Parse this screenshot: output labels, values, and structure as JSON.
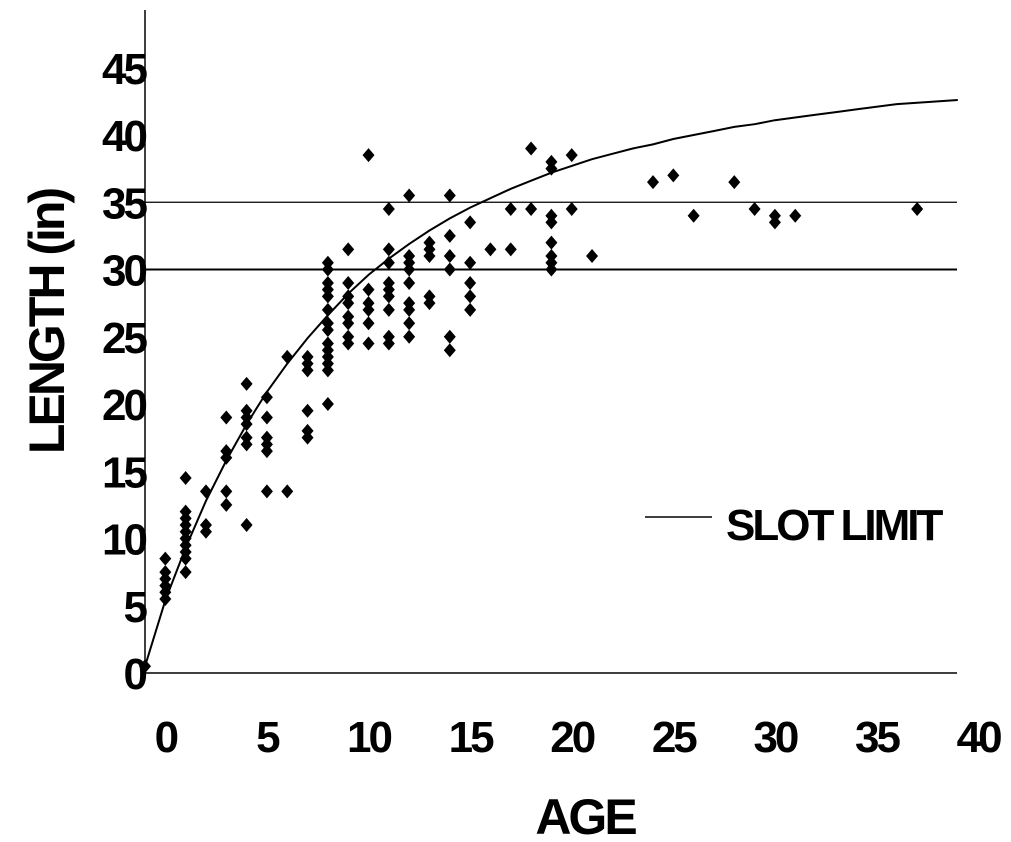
{
  "chart_data": {
    "type": "scatter",
    "xlabel": "AGE",
    "ylabel": "LENGTH (in)",
    "xlim": [
      -1,
      39
    ],
    "ylim": [
      0,
      45
    ],
    "x_ticks": [
      0,
      5,
      10,
      15,
      20,
      25,
      30,
      35,
      40
    ],
    "y_ticks": [
      0,
      5,
      10,
      15,
      20,
      25,
      30,
      35,
      40,
      45
    ],
    "grid": false,
    "legend": {
      "position": "right",
      "entries": [
        "SLOT LIMIT"
      ]
    },
    "slot_limits": [
      30,
      35
    ],
    "series": [
      {
        "kind": "points",
        "marker": "diamond",
        "color": "#000000",
        "points": [
          [
            -1,
            0.5
          ],
          [
            0,
            5.5
          ],
          [
            0,
            6
          ],
          [
            0,
            6.5
          ],
          [
            0,
            7
          ],
          [
            0,
            7.5
          ],
          [
            0,
            8.5
          ],
          [
            1,
            7.5
          ],
          [
            1,
            8.5
          ],
          [
            1,
            9
          ],
          [
            1,
            9.5
          ],
          [
            1,
            10
          ],
          [
            1,
            10.5
          ],
          [
            1,
            11
          ],
          [
            1,
            11.5
          ],
          [
            1,
            12
          ],
          [
            1,
            14.5
          ],
          [
            2,
            10.5
          ],
          [
            2,
            11
          ],
          [
            2,
            13.5
          ],
          [
            3,
            12.5
          ],
          [
            3,
            13.5
          ],
          [
            3,
            16
          ],
          [
            3,
            16.5
          ],
          [
            3,
            19
          ],
          [
            4,
            11
          ],
          [
            4,
            17
          ],
          [
            4,
            17.5
          ],
          [
            4,
            18.5
          ],
          [
            4,
            19
          ],
          [
            4,
            19.5
          ],
          [
            4,
            21.5
          ],
          [
            5,
            13.5
          ],
          [
            5,
            16.5
          ],
          [
            5,
            17
          ],
          [
            5,
            17.5
          ],
          [
            5,
            19
          ],
          [
            5,
            20.5
          ],
          [
            6,
            13.5
          ],
          [
            6,
            23.5
          ],
          [
            7,
            17.5
          ],
          [
            7,
            18
          ],
          [
            7,
            19.5
          ],
          [
            7,
            22.5
          ],
          [
            7,
            23
          ],
          [
            7,
            23.5
          ],
          [
            8,
            20
          ],
          [
            8,
            22.5
          ],
          [
            8,
            23
          ],
          [
            8,
            23.5
          ],
          [
            8,
            24
          ],
          [
            8,
            24.5
          ],
          [
            8,
            25.5
          ],
          [
            8,
            26
          ],
          [
            8,
            27
          ],
          [
            8,
            28
          ],
          [
            8,
            28.5
          ],
          [
            8,
            29
          ],
          [
            8,
            30
          ],
          [
            8,
            30.5
          ],
          [
            9,
            24.5
          ],
          [
            9,
            25
          ],
          [
            9,
            26
          ],
          [
            9,
            26.5
          ],
          [
            9,
            27.5
          ],
          [
            9,
            28
          ],
          [
            9,
            29
          ],
          [
            9,
            31.5
          ],
          [
            10,
            24.5
          ],
          [
            10,
            26
          ],
          [
            10,
            27
          ],
          [
            10,
            27.5
          ],
          [
            10,
            28.5
          ],
          [
            10,
            38.5
          ],
          [
            11,
            24.5
          ],
          [
            11,
            25
          ],
          [
            11,
            27
          ],
          [
            11,
            28
          ],
          [
            11,
            28.5
          ],
          [
            11,
            29
          ],
          [
            11,
            30.5
          ],
          [
            11,
            31.5
          ],
          [
            11,
            34.5
          ],
          [
            12,
            25
          ],
          [
            12,
            26
          ],
          [
            12,
            27
          ],
          [
            12,
            27.5
          ],
          [
            12,
            29
          ],
          [
            12,
            30
          ],
          [
            12,
            30.5
          ],
          [
            12,
            31
          ],
          [
            12,
            35.5
          ],
          [
            13,
            27.5
          ],
          [
            13,
            28
          ],
          [
            13,
            31
          ],
          [
            13,
            31.5
          ],
          [
            13,
            32
          ],
          [
            14,
            24
          ],
          [
            14,
            25
          ],
          [
            14,
            30
          ],
          [
            14,
            31
          ],
          [
            14,
            32.5
          ],
          [
            14,
            35.5
          ],
          [
            15,
            27
          ],
          [
            15,
            28
          ],
          [
            15,
            29
          ],
          [
            15,
            30.5
          ],
          [
            15,
            33.5
          ],
          [
            16,
            31.5
          ],
          [
            17,
            31.5
          ],
          [
            17,
            34.5
          ],
          [
            18,
            34.5
          ],
          [
            18,
            39
          ],
          [
            19,
            30
          ],
          [
            19,
            30.5
          ],
          [
            19,
            31
          ],
          [
            19,
            32
          ],
          [
            19,
            33.5
          ],
          [
            19,
            34
          ],
          [
            19,
            37.5
          ],
          [
            19,
            38
          ],
          [
            20,
            34.5
          ],
          [
            20,
            38.5
          ],
          [
            21,
            31
          ],
          [
            24,
            36.5
          ],
          [
            25,
            37
          ],
          [
            26,
            34
          ],
          [
            28,
            36.5
          ],
          [
            29,
            34.5
          ],
          [
            30,
            33.5
          ],
          [
            30,
            34
          ],
          [
            31,
            34
          ],
          [
            37,
            34.5
          ]
        ]
      },
      {
        "kind": "growth-curve",
        "color": "#000000",
        "points": [
          [
            -1,
            0.5
          ],
          [
            0,
            5.4
          ],
          [
            1,
            9.3
          ],
          [
            2,
            12.8
          ],
          [
            3,
            15.8
          ],
          [
            4,
            18.5
          ],
          [
            5,
            20.9
          ],
          [
            6,
            23
          ],
          [
            7,
            24.9
          ],
          [
            8,
            26.6
          ],
          [
            9,
            28.2
          ],
          [
            10,
            29.6
          ],
          [
            11,
            30.8
          ],
          [
            12,
            31.9
          ],
          [
            13,
            32.9
          ],
          [
            14,
            33.8
          ],
          [
            15,
            34.6
          ],
          [
            16,
            35.3
          ],
          [
            17,
            36
          ],
          [
            18,
            36.6
          ],
          [
            19,
            37.2
          ],
          [
            20,
            37.7
          ],
          [
            21,
            38.2
          ],
          [
            22,
            38.6
          ],
          [
            23,
            39
          ],
          [
            24,
            39.3
          ],
          [
            25,
            39.7
          ],
          [
            26,
            40
          ],
          [
            27,
            40.3
          ],
          [
            28,
            40.6
          ],
          [
            29,
            40.8
          ],
          [
            30,
            41.1
          ],
          [
            31,
            41.3
          ],
          [
            32,
            41.5
          ],
          [
            33,
            41.7
          ],
          [
            34,
            41.9
          ],
          [
            35,
            42.1
          ],
          [
            36,
            42.3
          ],
          [
            37,
            42.4
          ],
          [
            38,
            42.5
          ],
          [
            39,
            42.6
          ]
        ]
      }
    ]
  }
}
